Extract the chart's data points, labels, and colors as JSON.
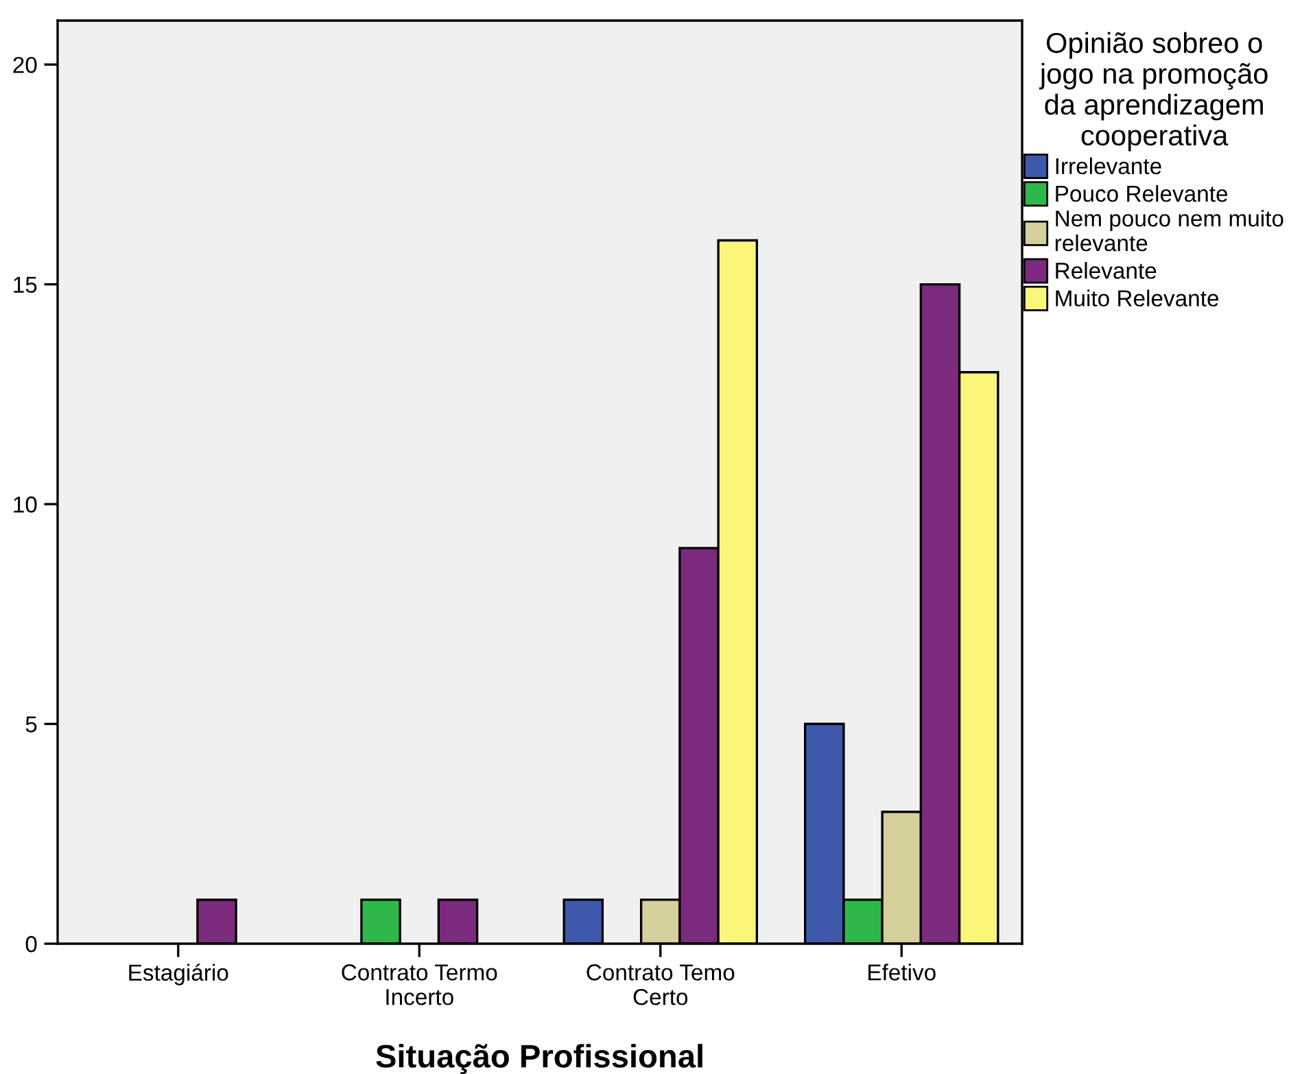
{
  "chart_data": {
    "type": "bar",
    "xlabel": "Situação Profissional",
    "legend_title": "Opinião sobreo o\njogo na promoção\nda aprendizagem\ncooperativa",
    "categories": [
      "Estagiário",
      "Contrato Termo\nIncerto",
      "Contrato Temo\nCerto",
      "Efetivo"
    ],
    "series": [
      {
        "name": "Irrelevante",
        "color": "#3e58ac",
        "values": [
          0,
          0,
          1,
          5
        ]
      },
      {
        "name": "Pouco Relevante",
        "color": "#2fb84a",
        "values": [
          0,
          1,
          0,
          1
        ]
      },
      {
        "name": "Nem pouco nem muito\nrelevante",
        "color": "#d4cf9b",
        "values": [
          0,
          0,
          1,
          3
        ]
      },
      {
        "name": "Relevante",
        "color": "#7b2a7e",
        "values": [
          1,
          1,
          9,
          15
        ]
      },
      {
        "name": "Muito Relevante",
        "color": "#fbf67a",
        "values": [
          0,
          0,
          16,
          13
        ]
      }
    ],
    "ylim": [
      0,
      21
    ],
    "yticks": [
      0,
      5,
      10,
      15,
      20
    ],
    "grid": false,
    "legend": "top right"
  }
}
